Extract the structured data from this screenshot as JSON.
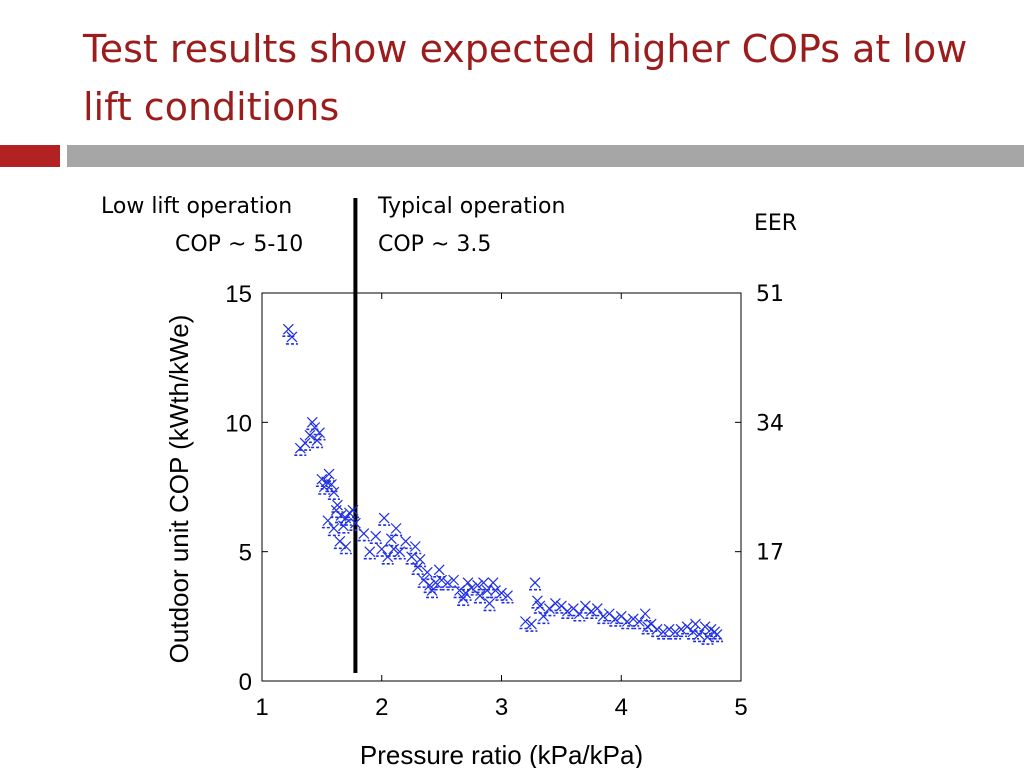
{
  "slide": {
    "title": "Test results show expected higher COPs at low lift conditions"
  },
  "annotations": {
    "low_lift_label": "Low lift  operation",
    "low_lift_cop": "COP ~ 5-10",
    "typical_label": "Typical operation",
    "typical_cop": "COP ~ 3.5",
    "eer_label": "EER"
  },
  "colors": {
    "title": "#9b1c1c",
    "accent_bar": "#b22222",
    "gray_bar": "#a6a6a6",
    "markers": "#1f2fe0"
  },
  "chart_data": {
    "type": "scatter",
    "xlabel": "Pressure ratio (kPa/kPa)",
    "ylabel": "Outdoor unit COP (kWth/kWe)",
    "xlim": [
      1,
      5
    ],
    "ylim": [
      0,
      15
    ],
    "xticks": [
      1,
      2,
      3,
      4,
      5
    ],
    "yticks": [
      0,
      5,
      10,
      15
    ],
    "right_axis": {
      "label": "EER",
      "ticks": [
        {
          "value": 5,
          "label": "17"
        },
        {
          "value": 10,
          "label": "34"
        },
        {
          "value": 15,
          "label": "51"
        }
      ]
    },
    "divider_x": 1.78,
    "grid": false,
    "series": [
      {
        "marker": "x",
        "points": [
          [
            1.22,
            13.6
          ],
          [
            1.25,
            13.3
          ],
          [
            1.32,
            9.0
          ],
          [
            1.36,
            9.2
          ],
          [
            1.4,
            9.5
          ],
          [
            1.42,
            10.0
          ],
          [
            1.44,
            9.8
          ],
          [
            1.46,
            9.3
          ],
          [
            1.48,
            9.6
          ],
          [
            1.5,
            7.8
          ],
          [
            1.52,
            7.5
          ],
          [
            1.54,
            7.7
          ],
          [
            1.56,
            8.0
          ],
          [
            1.58,
            7.6
          ],
          [
            1.6,
            7.3
          ],
          [
            1.62,
            6.6
          ],
          [
            1.55,
            6.2
          ],
          [
            1.6,
            5.9
          ],
          [
            1.63,
            6.8
          ],
          [
            1.66,
            6.4
          ],
          [
            1.68,
            6.0
          ],
          [
            1.7,
            6.3
          ],
          [
            1.73,
            6.5
          ],
          [
            1.76,
            6.6
          ],
          [
            1.78,
            6.1
          ],
          [
            1.65,
            5.4
          ],
          [
            1.7,
            5.2
          ],
          [
            1.85,
            5.7
          ],
          [
            1.9,
            5.0
          ],
          [
            1.95,
            5.6
          ],
          [
            2.0,
            5.1
          ],
          [
            2.02,
            6.3
          ],
          [
            2.05,
            4.8
          ],
          [
            2.08,
            5.5
          ],
          [
            2.1,
            5.1
          ],
          [
            2.12,
            5.9
          ],
          [
            2.15,
            5.0
          ],
          [
            2.2,
            5.4
          ],
          [
            2.25,
            4.8
          ],
          [
            2.28,
            5.2
          ],
          [
            2.3,
            4.4
          ],
          [
            2.32,
            4.7
          ],
          [
            2.35,
            3.9
          ],
          [
            2.38,
            4.2
          ],
          [
            2.4,
            3.7
          ],
          [
            2.42,
            3.5
          ],
          [
            2.45,
            3.8
          ],
          [
            2.48,
            4.3
          ],
          [
            2.5,
            3.9
          ],
          [
            2.55,
            3.8
          ],
          [
            2.6,
            3.9
          ],
          [
            2.65,
            3.5
          ],
          [
            2.68,
            3.2
          ],
          [
            2.7,
            3.4
          ],
          [
            2.72,
            3.8
          ],
          [
            2.75,
            3.6
          ],
          [
            2.8,
            3.7
          ],
          [
            2.82,
            3.3
          ],
          [
            2.85,
            3.8
          ],
          [
            2.88,
            3.5
          ],
          [
            2.9,
            3.0
          ],
          [
            2.93,
            3.8
          ],
          [
            2.95,
            3.5
          ],
          [
            3.0,
            3.4
          ],
          [
            3.05,
            3.3
          ],
          [
            3.2,
            2.3
          ],
          [
            3.25,
            2.2
          ],
          [
            3.28,
            3.8
          ],
          [
            3.3,
            3.1
          ],
          [
            3.32,
            2.9
          ],
          [
            3.35,
            2.5
          ],
          [
            3.4,
            2.8
          ],
          [
            3.45,
            3.0
          ],
          [
            3.5,
            2.9
          ],
          [
            3.55,
            2.7
          ],
          [
            3.6,
            2.8
          ],
          [
            3.65,
            2.6
          ],
          [
            3.7,
            2.9
          ],
          [
            3.75,
            2.7
          ],
          [
            3.8,
            2.8
          ],
          [
            3.85,
            2.5
          ],
          [
            3.9,
            2.6
          ],
          [
            3.95,
            2.4
          ],
          [
            4.0,
            2.5
          ],
          [
            4.05,
            2.3
          ],
          [
            4.1,
            2.4
          ],
          [
            4.15,
            2.3
          ],
          [
            4.2,
            2.6
          ],
          [
            4.22,
            2.1
          ],
          [
            4.25,
            2.2
          ],
          [
            4.3,
            2.0
          ],
          [
            4.35,
            1.9
          ],
          [
            4.4,
            2.0
          ],
          [
            4.45,
            1.9
          ],
          [
            4.5,
            2.0
          ],
          [
            4.55,
            2.1
          ],
          [
            4.6,
            1.9
          ],
          [
            4.62,
            2.2
          ],
          [
            4.65,
            1.8
          ],
          [
            4.7,
            2.1
          ],
          [
            4.72,
            1.7
          ],
          [
            4.75,
            2.0
          ],
          [
            4.78,
            1.9
          ],
          [
            4.8,
            1.8
          ]
        ]
      }
    ]
  }
}
